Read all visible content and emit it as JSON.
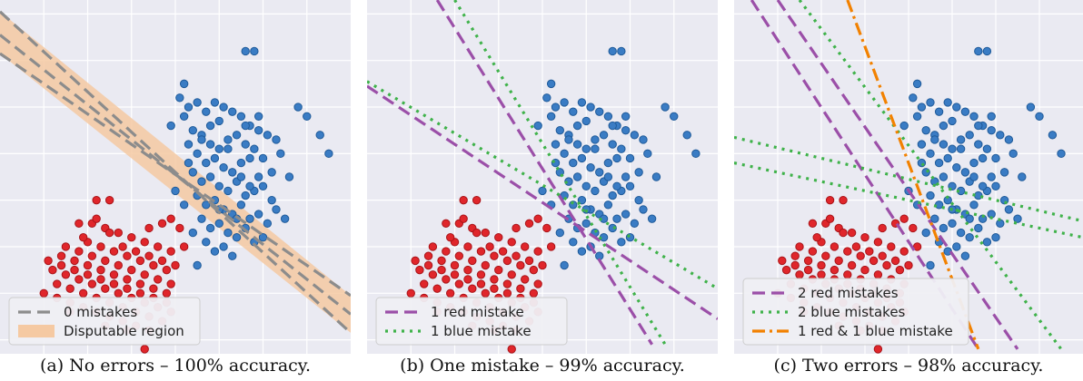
{
  "chart_data": [
    {
      "type": "scatter",
      "caption": "(a) No errors – 100% accuracy.",
      "legend": [
        {
          "label": "0 mistakes",
          "style": "dashed",
          "color": "#8c8c8c"
        },
        {
          "label": "Disputable region",
          "style": "band",
          "color": "#f5c9a2"
        }
      ],
      "lines": [
        {
          "name": "0 mistakes",
          "color": "#8c8c8c",
          "dash": "dashed",
          "points": [
            [
              0.0,
              6.55
            ],
            [
              8.0,
              0.55
            ]
          ]
        },
        {
          "name": "0 mistakes",
          "color": "#8c8c8c",
          "dash": "dashed",
          "points": [
            [
              0.0,
              7.05
            ],
            [
              8.0,
              0.15
            ]
          ]
        },
        {
          "name": "0 mistakes",
          "color": "#8c8c8c",
          "dash": "dashed",
          "points": [
            [
              0.0,
              6.15
            ],
            [
              8.0,
              0.95
            ]
          ]
        }
      ],
      "band": {
        "upper": [
          [
            0.0,
            7.05
          ],
          [
            8.0,
            0.95
          ]
        ],
        "lower": [
          [
            0.0,
            6.15
          ],
          [
            8.0,
            0.15
          ]
        ]
      }
    },
    {
      "type": "scatter",
      "caption": "(b) One mistake – 99% accuracy.",
      "legend": [
        {
          "label": "1 red mistake",
          "style": "dashed",
          "color": "#9b4fa8"
        },
        {
          "label": "1 blue mistake",
          "style": "dotted",
          "color": "#3fb24a"
        }
      ],
      "lines": [
        {
          "name": "1 red mistake",
          "color": "#9b4fa8",
          "dash": "dashed",
          "points": [
            [
              1.6,
              7.3
            ],
            [
              6.5,
              -0.1
            ]
          ]
        },
        {
          "name": "1 red mistake",
          "color": "#9b4fa8",
          "dash": "dashed",
          "points": [
            [
              0.0,
              5.45
            ],
            [
              8.0,
              0.45
            ]
          ]
        },
        {
          "name": "1 blue mistake",
          "color": "#3fb24a",
          "dash": "dotted",
          "points": [
            [
              2.0,
              7.3
            ],
            [
              6.8,
              -0.1
            ]
          ]
        },
        {
          "name": "1 blue mistake",
          "color": "#3fb24a",
          "dash": "dotted",
          "points": [
            [
              0.0,
              5.55
            ],
            [
              8.0,
              1.1
            ]
          ]
        }
      ]
    },
    {
      "type": "scatter",
      "caption": "(c) Two errors – 98% accuracy.",
      "legend": [
        {
          "label": "2 red mistakes",
          "style": "dashed",
          "color": "#9b4fa8"
        },
        {
          "label": "2 blue mistakes",
          "style": "dotted",
          "color": "#3fb24a"
        },
        {
          "label": "1 red & 1 blue mistake",
          "style": "dashdot",
          "color": "#f28100"
        }
      ],
      "lines": [
        {
          "name": "2 red mistakes",
          "color": "#9b4fa8",
          "dash": "dashed",
          "points": [
            [
              0.4,
              7.3
            ],
            [
              5.6,
              -0.2
            ]
          ]
        },
        {
          "name": "2 red mistakes",
          "color": "#9b4fa8",
          "dash": "dashed",
          "points": [
            [
              1.0,
              7.3
            ],
            [
              6.5,
              -0.2
            ]
          ]
        },
        {
          "name": "2 blue mistakes",
          "color": "#3fb24a",
          "dash": "dotted",
          "points": [
            [
              0.0,
              3.8
            ],
            [
              8.0,
              2.2
            ]
          ]
        },
        {
          "name": "2 blue mistakes",
          "color": "#3fb24a",
          "dash": "dotted",
          "points": [
            [
              0.0,
              4.35
            ],
            [
              8.0,
              2.55
            ]
          ]
        },
        {
          "name": "2 blue mistakes",
          "color": "#3fb24a",
          "dash": "dotted",
          "points": [
            [
              1.5,
              7.3
            ],
            [
              7.5,
              -0.2
            ]
          ]
        },
        {
          "name": "1 red & 1 blue mistake",
          "color": "#f28100",
          "dash": "dashdot",
          "points": [
            [
              2.6,
              7.3
            ],
            [
              5.6,
              -0.2
            ]
          ]
        }
      ]
    }
  ],
  "points": {
    "blue": [
      [
        4.1,
        5.2
      ],
      [
        4.3,
        5.0
      ],
      [
        4.5,
        5.1
      ],
      [
        4.7,
        4.9
      ],
      [
        4.2,
        4.8
      ],
      [
        4.4,
        4.5
      ],
      [
        4.6,
        4.4
      ],
      [
        4.8,
        4.6
      ],
      [
        5.0,
        4.7
      ],
      [
        5.2,
        4.3
      ],
      [
        5.4,
        4.4
      ],
      [
        5.6,
        4.2
      ],
      [
        5.8,
        4.1
      ],
      [
        5.5,
        4.8
      ],
      [
        5.3,
        4.9
      ],
      [
        5.1,
        5.0
      ],
      [
        4.9,
        5.1
      ],
      [
        5.7,
        4.6
      ],
      [
        5.9,
        4.5
      ],
      [
        6.1,
        4.4
      ],
      [
        6.3,
        4.3
      ],
      [
        4.3,
        4.2
      ],
      [
        4.5,
        4.0
      ],
      [
        4.7,
        3.8
      ],
      [
        4.9,
        3.9
      ],
      [
        5.1,
        3.7
      ],
      [
        5.3,
        3.6
      ],
      [
        5.5,
        3.8
      ],
      [
        5.7,
        3.9
      ],
      [
        5.9,
        3.5
      ],
      [
        4.4,
        3.6
      ],
      [
        4.6,
        3.4
      ],
      [
        4.8,
        3.5
      ],
      [
        5.0,
        3.3
      ],
      [
        5.2,
        3.2
      ],
      [
        5.4,
        3.4
      ],
      [
        5.6,
        3.1
      ],
      [
        5.8,
        3.2
      ],
      [
        6.0,
        3.3
      ],
      [
        6.2,
        3.0
      ],
      [
        4.5,
        3.1
      ],
      [
        4.7,
        2.9
      ],
      [
        4.9,
        3.0
      ],
      [
        5.1,
        2.8
      ],
      [
        5.3,
        2.7
      ],
      [
        5.5,
        2.9
      ],
      [
        5.7,
        2.6
      ],
      [
        5.9,
        2.7
      ],
      [
        6.1,
        2.5
      ],
      [
        6.3,
        2.8
      ],
      [
        4.6,
        2.6
      ],
      [
        4.8,
        2.4
      ],
      [
        5.0,
        2.5
      ],
      [
        5.2,
        2.3
      ],
      [
        5.4,
        2.2
      ],
      [
        5.6,
        2.4
      ],
      [
        5.8,
        2.1
      ],
      [
        4.7,
        2.1
      ],
      [
        4.9,
        1.9
      ],
      [
        5.1,
        2.0
      ],
      [
        5.3,
        1.8
      ],
      [
        4.5,
        1.6
      ],
      [
        5.6,
        6.2
      ],
      [
        5.8,
        6.2
      ],
      [
        4.2,
        5.5
      ],
      [
        6.8,
        5.0
      ],
      [
        7.0,
        4.8
      ],
      [
        7.3,
        4.4
      ],
      [
        7.5,
        4.0
      ],
      [
        6.6,
        3.5
      ],
      [
        6.4,
        4.0
      ],
      [
        3.9,
        4.6
      ],
      [
        4.0,
        3.2
      ],
      [
        4.2,
        2.9
      ],
      [
        6.5,
        2.6
      ],
      [
        5.0,
        4.1
      ],
      [
        5.5,
        3.5
      ],
      [
        4.6,
        4.3
      ],
      [
        5.2,
        4.1
      ],
      [
        5.7,
        3.3
      ],
      [
        6.0,
        3.9
      ],
      [
        4.8,
        4.2
      ],
      [
        5.4,
        2.6
      ],
      [
        6.2,
        3.6
      ],
      [
        5.9,
        4.8
      ],
      [
        4.3,
        3.8
      ],
      [
        5.0,
        2.8
      ],
      [
        4.4,
        2.3
      ],
      [
        5.6,
        4.6
      ],
      [
        6.0,
        2.2
      ]
    ],
    "red": [
      [
        1.8,
        2.5
      ],
      [
        2.1,
        2.5
      ],
      [
        2.4,
        2.4
      ],
      [
        2.7,
        2.3
      ],
      [
        3.0,
        2.2
      ],
      [
        3.3,
        2.1
      ],
      [
        3.6,
        2.0
      ],
      [
        3.9,
        1.9
      ],
      [
        1.5,
        2.0
      ],
      [
        1.8,
        1.9
      ],
      [
        2.1,
        1.8
      ],
      [
        2.4,
        1.7
      ],
      [
        2.7,
        1.6
      ],
      [
        3.0,
        1.5
      ],
      [
        3.3,
        1.4
      ],
      [
        3.6,
        1.3
      ],
      [
        3.9,
        1.2
      ],
      [
        1.2,
        1.5
      ],
      [
        1.5,
        1.4
      ],
      [
        1.8,
        1.3
      ],
      [
        2.1,
        1.2
      ],
      [
        2.4,
        1.1
      ],
      [
        2.7,
        1.0
      ],
      [
        3.0,
        0.9
      ],
      [
        3.3,
        0.8
      ],
      [
        3.6,
        0.7
      ],
      [
        3.9,
        0.6
      ],
      [
        1.0,
        1.0
      ],
      [
        1.3,
        0.9
      ],
      [
        1.6,
        0.8
      ],
      [
        1.9,
        0.7
      ],
      [
        2.2,
        0.6
      ],
      [
        2.5,
        0.5
      ],
      [
        2.8,
        0.4
      ],
      [
        3.1,
        0.3
      ],
      [
        3.4,
        0.2
      ],
      [
        1.4,
        1.8
      ],
      [
        1.7,
        1.7
      ],
      [
        2.0,
        1.6
      ],
      [
        2.3,
        1.5
      ],
      [
        2.6,
        1.4
      ],
      [
        2.9,
        1.3
      ],
      [
        3.2,
        1.2
      ],
      [
        3.5,
        1.1
      ],
      [
        3.8,
        1.0
      ],
      [
        2.0,
        2.1
      ],
      [
        2.3,
        2.0
      ],
      [
        2.6,
        1.9
      ],
      [
        2.9,
        1.8
      ],
      [
        3.2,
        1.7
      ],
      [
        3.5,
        1.6
      ],
      [
        3.8,
        1.5
      ],
      [
        1.6,
        1.1
      ],
      [
        1.9,
        1.0
      ],
      [
        2.2,
        0.9
      ],
      [
        2.5,
        0.8
      ],
      [
        2.8,
        0.7
      ],
      [
        3.1,
        0.6
      ],
      [
        3.4,
        0.5
      ],
      [
        3.7,
        0.4
      ],
      [
        1.1,
        1.7
      ],
      [
        1.4,
        1.6
      ],
      [
        1.7,
        1.5
      ],
      [
        2.0,
        1.4
      ],
      [
        2.3,
        1.3
      ],
      [
        2.6,
        1.2
      ],
      [
        2.9,
        1.1
      ],
      [
        3.2,
        1.0
      ],
      [
        3.5,
        0.9
      ],
      [
        3.8,
        0.8
      ],
      [
        2.2,
        2.6
      ],
      [
        2.5,
        2.3
      ],
      [
        2.8,
        2.0
      ],
      [
        3.1,
        1.9
      ],
      [
        3.4,
        1.8
      ],
      [
        3.7,
        1.7
      ],
      [
        4.0,
        1.6
      ],
      [
        1.3,
        1.2
      ],
      [
        1.6,
        0.6
      ],
      [
        2.4,
        0.3
      ],
      [
        2.9,
        0.2
      ],
      [
        3.3,
        -0.2
      ],
      [
        3.9,
        2.6
      ],
      [
        4.1,
        2.4
      ],
      [
        4.2,
        2.0
      ],
      [
        2.5,
        3.0
      ],
      [
        2.2,
        3.0
      ],
      [
        3.4,
        2.4
      ],
      [
        3.7,
        2.5
      ],
      [
        1.9,
        2.2
      ]
    ]
  },
  "axes": {
    "xlim": [
      0,
      8
    ],
    "ylim": [
      -0.3,
      7.3
    ],
    "grid": true,
    "background": "#eaeaf2",
    "grid_color": "#ffffff"
  }
}
